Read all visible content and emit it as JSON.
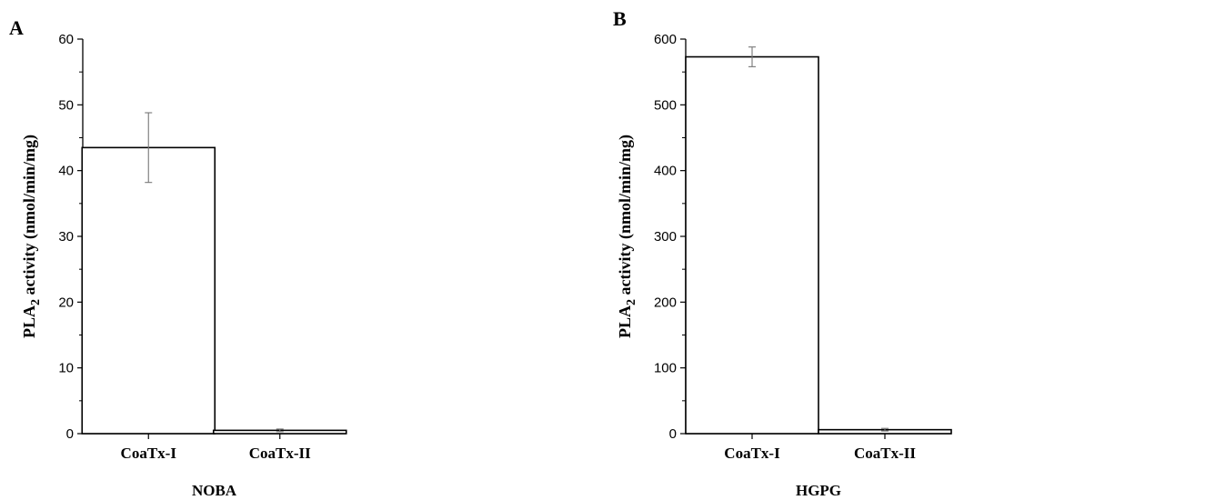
{
  "chart_data": [
    {
      "panel_label": "A",
      "type": "bar",
      "categories": [
        "CoaTx-I",
        "CoaTx-II"
      ],
      "values": [
        43.5,
        0.5
      ],
      "errors": [
        5.3,
        0.2
      ],
      "xlabel": "NOBA",
      "ylabel_main": "PLA",
      "ylabel_sub": "2",
      "ylabel_rest": " activity (nmol/min/mg)",
      "ylim": [
        0,
        60
      ],
      "yticks": [
        0,
        10,
        20,
        30,
        40,
        50,
        60
      ],
      "grid": false,
      "bar_fill": "#ffffff",
      "bar_stroke": "#000000"
    },
    {
      "panel_label": "B",
      "type": "bar",
      "categories": [
        "CoaTx-I",
        "CoaTx-II"
      ],
      "values": [
        573,
        6
      ],
      "errors": [
        15,
        2
      ],
      "xlabel": "HGPG",
      "ylabel_main": "PLA",
      "ylabel_sub": "2",
      "ylabel_rest": " activity (nmol/min/mg)",
      "ylim": [
        0,
        600
      ],
      "yticks": [
        0,
        100,
        200,
        300,
        400,
        500,
        600
      ],
      "grid": false,
      "bar_fill": "#ffffff",
      "bar_stroke": "#000000"
    }
  ]
}
